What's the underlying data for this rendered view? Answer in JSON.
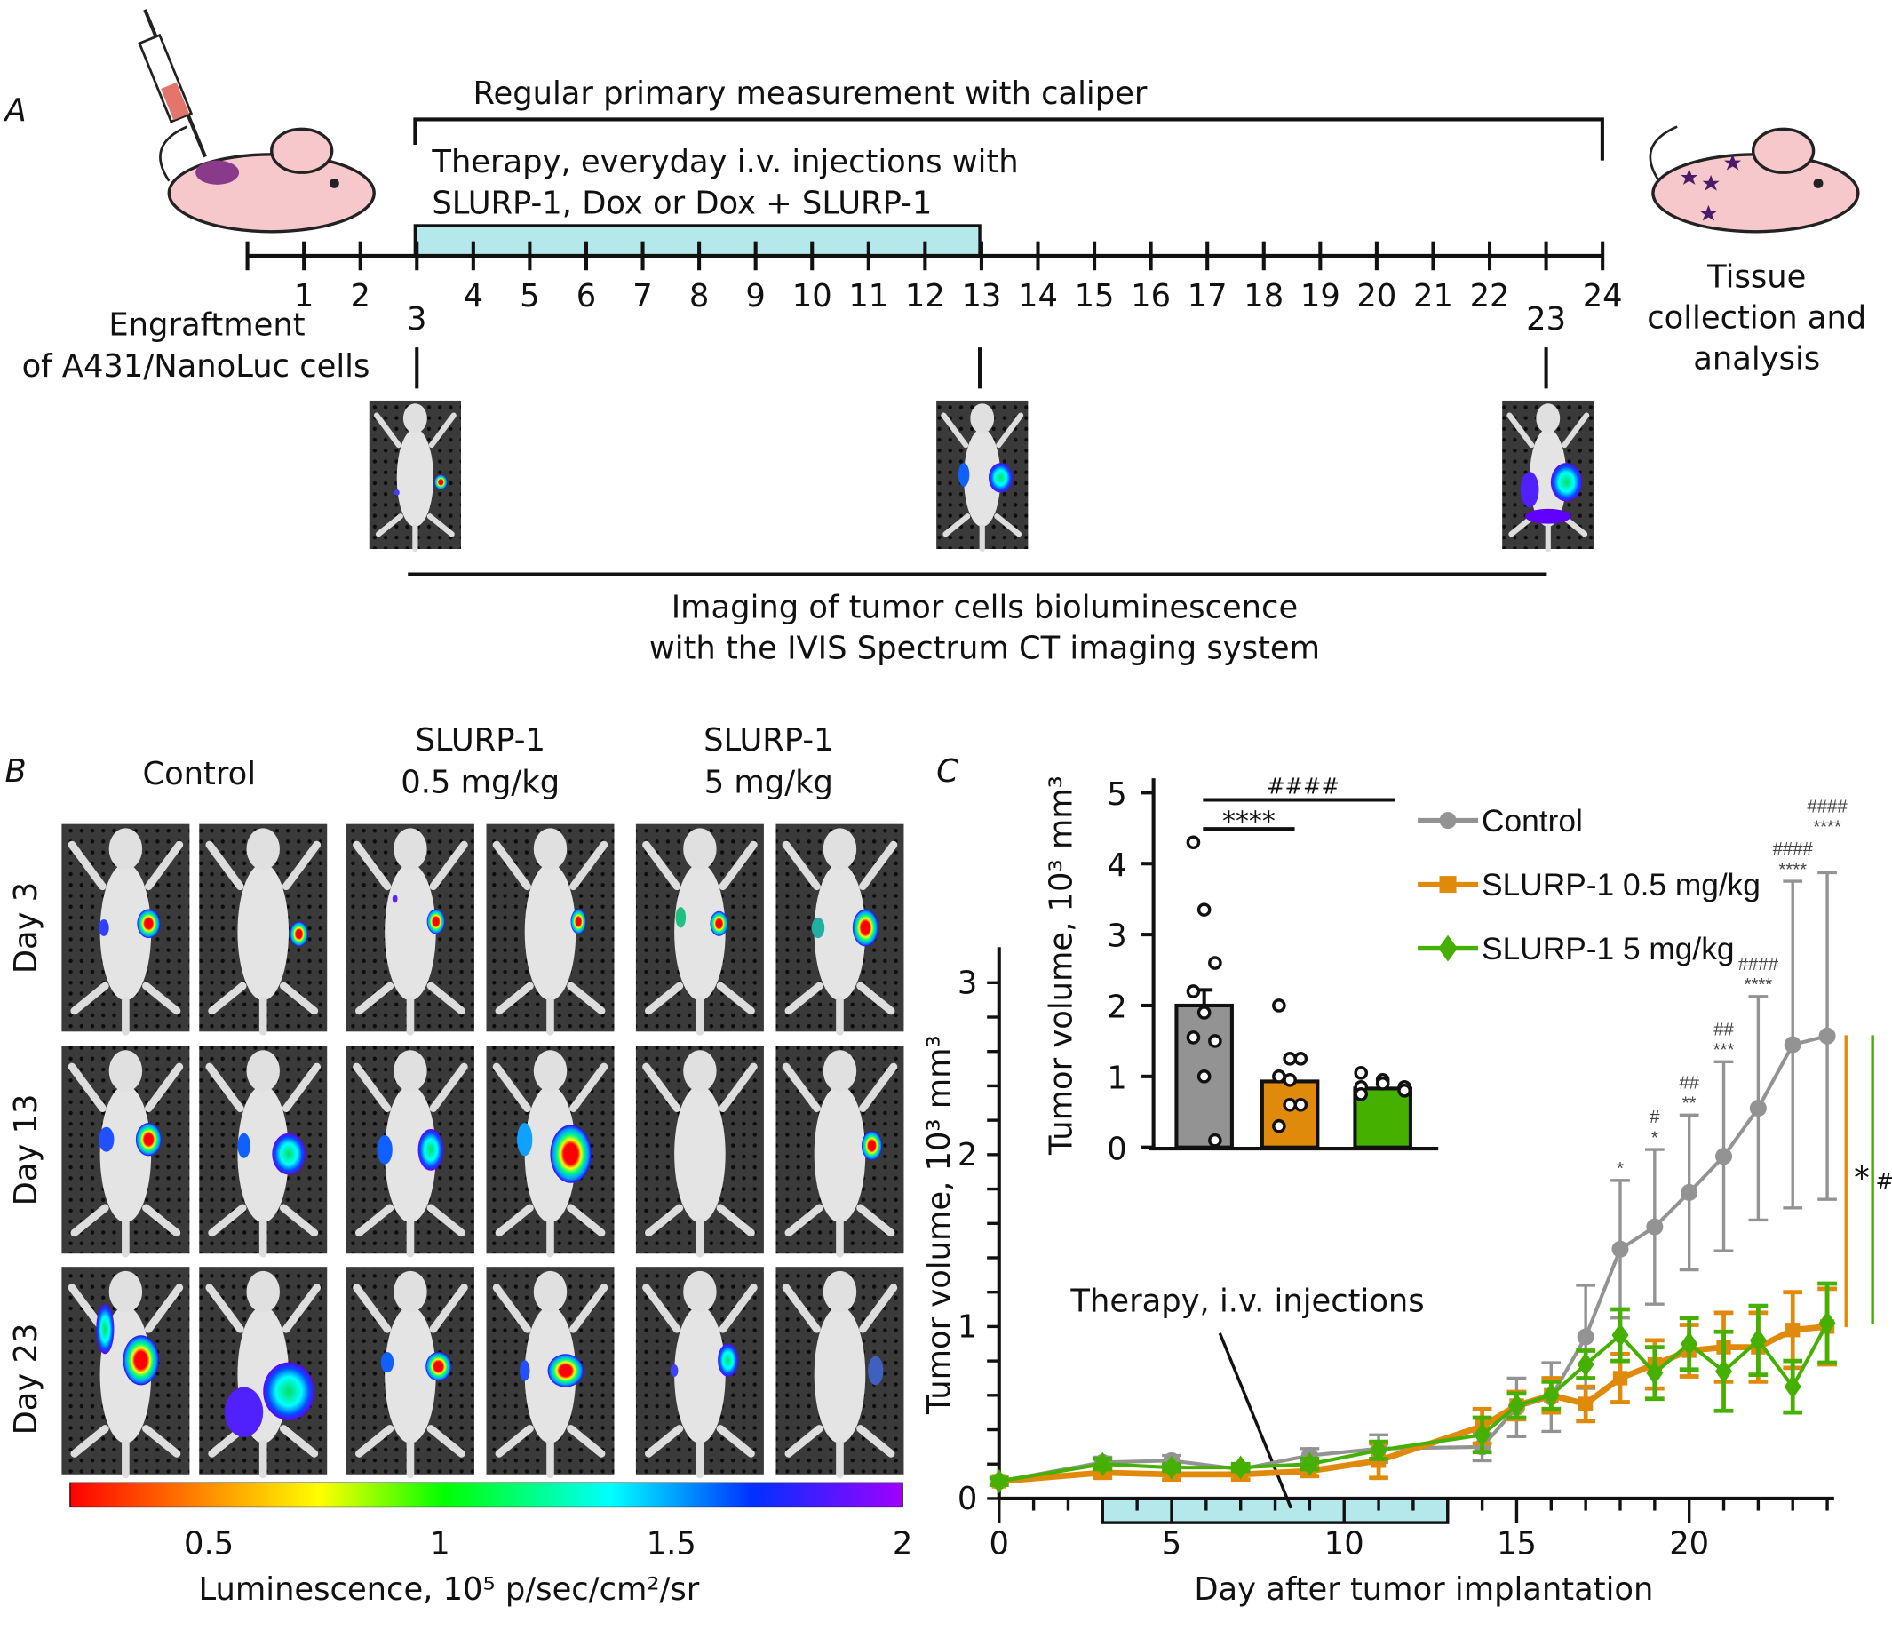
{
  "panel_a": {
    "label": "A",
    "caliper_text": "Regular primary measurement with caliper",
    "therapy_line1": "Therapy, everyday i.v. injections with",
    "therapy_line2": "SLURP-1, Dox or Dox + SLURP-1",
    "days": [
      "1",
      "2",
      "3",
      "4",
      "5",
      "6",
      "7",
      "8",
      "9",
      "10",
      "11",
      "12",
      "13",
      "14",
      "15",
      "16",
      "17",
      "18",
      "19",
      "20",
      "21",
      "22",
      "23",
      "24"
    ],
    "engraftment_line1": "Engraftment",
    "engraftment_line2": "of A431/NanoLuc cells",
    "tissue_line1": "Tissue",
    "tissue_line2": "collection and",
    "tissue_line3": "analysis",
    "imaging_line1": "Imaging of tumor cells bioluminescence",
    "imaging_line2": "with the IVIS Spectrum CT imaging system",
    "colors": {
      "therapy_bar": "#b5e8ea",
      "mouse": "#f6c8cc"
    }
  },
  "panel_b": {
    "label": "B",
    "columns": [
      {
        "line1": "",
        "line2": "Control"
      },
      {
        "line1": "SLURP-1",
        "line2": "0.5 mg/kg"
      },
      {
        "line1": "SLURP-1",
        "line2": "5 mg/kg"
      }
    ],
    "rows": [
      "Day 3",
      "Day 13",
      "Day 23"
    ],
    "colorbar": {
      "ticks": [
        "0.5",
        "1",
        "1.5",
        "2"
      ],
      "label": "Luminescence, 10⁵ p/sec/cm²/sr",
      "range": [
        0.2,
        2
      ]
    }
  },
  "panel_c": {
    "label": "C"
  },
  "chart_data": [
    {
      "type": "line",
      "xlabel": "Day after tumor implantation",
      "ylabel": "Tumor volume, 10³ mm³",
      "xlim": [
        0,
        24.5
      ],
      "ylim": [
        0,
        3
      ],
      "xticks": [
        "0",
        "5",
        "10",
        "15",
        "20"
      ],
      "yticks": [
        "0",
        "1",
        "2",
        "3"
      ],
      "annotation": "Therapy, i.v. injections",
      "therapy_days": [
        3,
        13
      ],
      "x": [
        0,
        3,
        5,
        7,
        9,
        11,
        14,
        15,
        16,
        17,
        18,
        19,
        20,
        21,
        22,
        23,
        24
      ],
      "series": [
        {
          "name": "Control",
          "color": "#939393",
          "marker": "circle",
          "values": [
            0.1,
            0.21,
            0.22,
            0.17,
            0.25,
            0.29,
            0.3,
            0.53,
            0.59,
            0.94,
            1.45,
            1.58,
            1.78,
            1.99,
            2.27,
            2.64,
            2.69
          ],
          "errors": [
            0.02,
            0.03,
            0.03,
            0.02,
            0.04,
            0.08,
            0.08,
            0.17,
            0.2,
            0.3,
            0.4,
            0.45,
            0.45,
            0.55,
            0.65,
            0.95,
            0.95
          ]
        },
        {
          "name": "SLURP-1 0.5 mg/kg",
          "color": "#e08a0c",
          "marker": "square",
          "values": [
            0.1,
            0.15,
            0.14,
            0.14,
            0.16,
            0.22,
            0.42,
            0.54,
            0.6,
            0.55,
            0.7,
            0.78,
            0.86,
            0.88,
            0.88,
            0.98,
            1.0
          ],
          "errors": [
            0.02,
            0.03,
            0.03,
            0.03,
            0.03,
            0.1,
            0.1,
            0.08,
            0.1,
            0.1,
            0.14,
            0.14,
            0.15,
            0.2,
            0.2,
            0.22,
            0.22
          ]
        },
        {
          "name": "SLURP-1 5 mg/kg",
          "color": "#45b000",
          "marker": "diamond",
          "values": [
            0.1,
            0.2,
            0.18,
            0.18,
            0.2,
            0.28,
            0.37,
            0.54,
            0.6,
            0.78,
            0.95,
            0.73,
            0.9,
            0.74,
            0.92,
            0.65,
            1.02
          ],
          "errors": [
            0.02,
            0.03,
            0.02,
            0.02,
            0.03,
            0.05,
            0.1,
            0.07,
            0.08,
            0.08,
            0.15,
            0.15,
            0.15,
            0.23,
            0.2,
            0.15,
            0.23
          ]
        }
      ],
      "significance": [
        {
          "x": 18,
          "hash": "",
          "star": "*"
        },
        {
          "x": 19,
          "hash": "#",
          "star": "*"
        },
        {
          "x": 20,
          "hash": "##",
          "star": "**"
        },
        {
          "x": 21,
          "hash": "##",
          "star": "***"
        },
        {
          "x": 22,
          "hash": "####",
          "star": "****"
        },
        {
          "x": 23,
          "hash": "####",
          "star": "****"
        },
        {
          "x": 24,
          "hash": "####",
          "star": "****"
        }
      ],
      "side_marks": {
        "orange": "*",
        "green": "#"
      },
      "legend": "top-right"
    },
    {
      "type": "bar",
      "ylabel": "Tumor volume, 10³ mm³",
      "ylim": [
        0,
        5
      ],
      "yticks": [
        "0",
        "1",
        "2",
        "3",
        "4",
        "5"
      ],
      "categories": [
        "Control",
        "SLURP-1 0.5 mg/kg",
        "SLURP-1 5 mg/kg"
      ],
      "values": [
        2.0,
        0.93,
        0.83
      ],
      "errors": [
        0.22,
        0.0,
        0.0
      ],
      "colors": [
        "#939393",
        "#e08a0c",
        "#45b000"
      ],
      "points": [
        [
          4.3,
          3.35,
          2.6,
          2.2,
          1.9,
          1.5,
          1.55,
          1.0,
          0.1
        ],
        [
          2.0,
          1.25,
          1.25,
          1.0,
          0.6,
          0.6,
          0.3,
          0.95
        ],
        [
          1.05,
          0.95,
          0.85,
          0.85,
          0.9,
          0.8,
          0.75
        ]
      ],
      "brackets": [
        {
          "label": "****"
        },
        {
          "label": "####"
        }
      ]
    }
  ]
}
